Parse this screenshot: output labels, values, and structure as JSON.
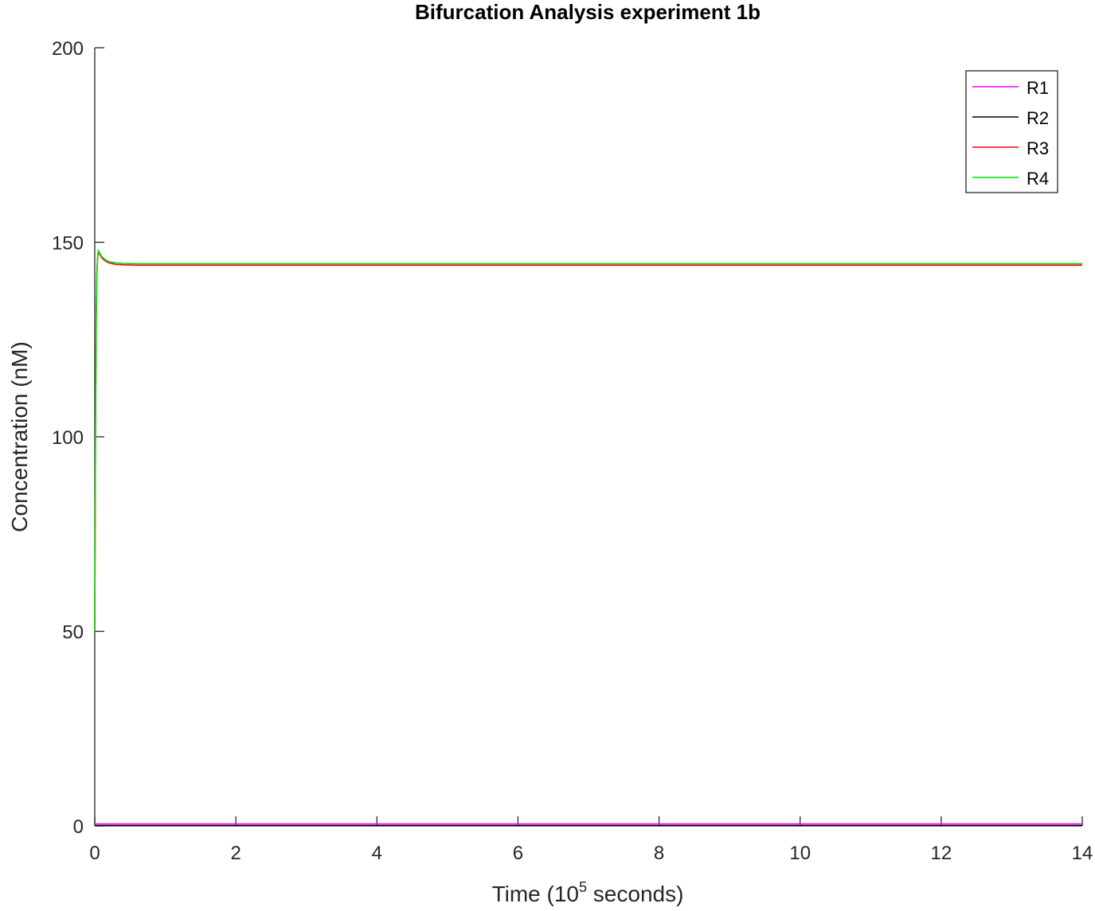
{
  "chart_data": {
    "type": "line",
    "title": "Bifurcation Analysis experiment 1b",
    "xlabel_parts": {
      "prefix": "Time (10",
      "sup": "5",
      "suffix": " seconds)"
    },
    "ylabel": "Concentration (nM)",
    "xlim": [
      0,
      14
    ],
    "ylim": [
      0,
      200
    ],
    "xticks": [
      0,
      2,
      4,
      6,
      8,
      10,
      12,
      14
    ],
    "yticks": [
      0,
      50,
      100,
      150,
      200
    ],
    "grid": false,
    "legend_position": "top-right",
    "series": [
      {
        "name": "R1",
        "color": "#ff00ff",
        "x": [
          0,
          14
        ],
        "y": [
          0.5,
          0.5
        ]
      },
      {
        "name": "R2",
        "color": "#000000",
        "x": [
          0,
          14
        ],
        "y": [
          0.1,
          0.1
        ]
      },
      {
        "name": "R3",
        "color": "#ff0000",
        "x": [
          0,
          0.01,
          0.02,
          0.03,
          0.04,
          0.05,
          0.06,
          0.08,
          0.1,
          0.15,
          0.2,
          0.3,
          0.4,
          0.6,
          1,
          14
        ],
        "y": [
          50,
          100,
          130,
          142,
          146,
          147.5,
          147.2,
          146.6,
          146,
          145.2,
          144.7,
          144.3,
          144.2,
          144.1,
          144.1,
          144.1
        ]
      },
      {
        "name": "R4",
        "color": "#00dd00",
        "x": [
          0,
          0.01,
          0.02,
          0.03,
          0.04,
          0.05,
          0.06,
          0.08,
          0.1,
          0.15,
          0.2,
          0.3,
          0.4,
          0.6,
          1,
          14
        ],
        "y": [
          50,
          100,
          130,
          142,
          146,
          147.8,
          147.5,
          146.9,
          146.3,
          145.5,
          145,
          144.7,
          144.6,
          144.5,
          144.5,
          144.5
        ]
      }
    ]
  }
}
